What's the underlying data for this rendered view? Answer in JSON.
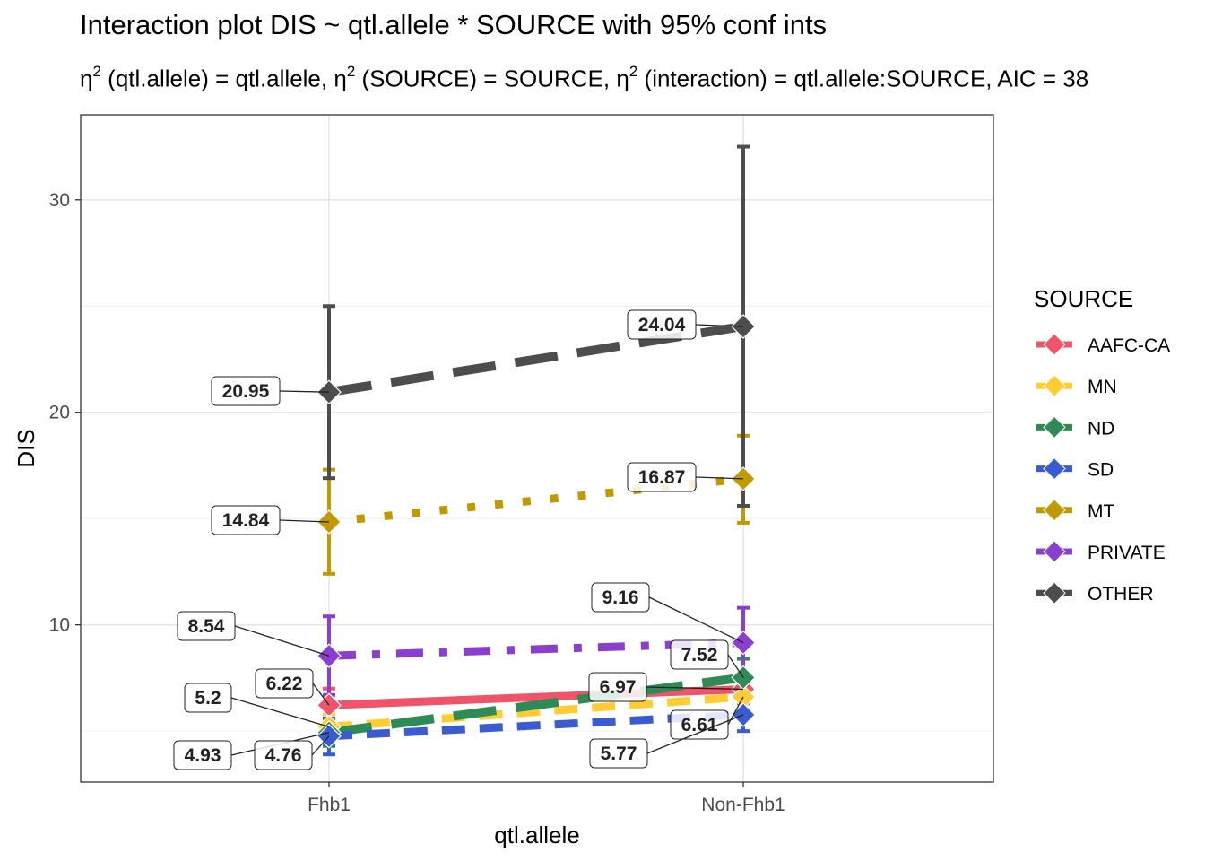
{
  "chart_data": {
    "type": "line",
    "title": "Interaction plot  DIS ~ qtl.allele * SOURCE with 95% conf ints",
    "subtitle": {
      "parts": [
        {
          "eta": "η",
          "sup": "2",
          "text": " (qtl.allele) = qtl.allele, "
        },
        {
          "eta": "η",
          "sup": "2",
          "text": " (SOURCE) = SOURCE, "
        },
        {
          "eta": "η",
          "sup": "2",
          "text": " (interaction) = qtl.allele:SOURCE, AIC = 38"
        }
      ]
    },
    "xlabel": "qtl.allele",
    "ylabel": "DIS",
    "categories": [
      "Fhb1",
      "Non-Fhb1"
    ],
    "ylim": [
      2.6,
      34
    ],
    "yticks": [
      10,
      20,
      30
    ],
    "grid": true,
    "legend": {
      "title": "SOURCE",
      "position": "right"
    },
    "series": [
      {
        "name": "AAFC-CA",
        "color": "#f0546a",
        "dash": "solid",
        "values": [
          6.22,
          6.97
        ],
        "lower": [
          5.5,
          6.3
        ],
        "upper": [
          7.0,
          7.6
        ],
        "labels": [
          "6.22",
          "6.97"
        ]
      },
      {
        "name": "MN",
        "color": "#ffcc33",
        "dash": "dash",
        "values": [
          5.2,
          6.61
        ],
        "lower": [
          4.6,
          6.0
        ],
        "upper": [
          5.8,
          7.2
        ],
        "labels": [
          "5.2",
          "6.61"
        ]
      },
      {
        "name": "ND",
        "color": "#2e8b57",
        "dash": "longdash",
        "values": [
          4.93,
          7.52
        ],
        "lower": [
          4.3,
          6.7
        ],
        "upper": [
          5.6,
          8.4
        ],
        "labels": [
          "4.93",
          "7.52"
        ]
      },
      {
        "name": "SD",
        "color": "#3b5bd0",
        "dash": "dash",
        "values": [
          4.76,
          5.77
        ],
        "lower": [
          3.9,
          5.0
        ],
        "upper": [
          5.6,
          6.5
        ],
        "labels": [
          "4.76",
          "5.77"
        ]
      },
      {
        "name": "MT",
        "color": "#c09a00",
        "dash": "dot",
        "values": [
          14.84,
          16.87
        ],
        "lower": [
          12.4,
          14.8
        ],
        "upper": [
          17.3,
          18.9
        ],
        "labels": [
          "14.84",
          "16.87"
        ]
      },
      {
        "name": "PRIVATE",
        "color": "#8a3fcf",
        "dash": "dotdash",
        "values": [
          8.54,
          9.16
        ],
        "lower": [
          6.7,
          7.5
        ],
        "upper": [
          10.4,
          10.8
        ],
        "labels": [
          "8.54",
          "9.16"
        ]
      },
      {
        "name": "OTHER",
        "color": "#4d4d4d",
        "dash": "longdash",
        "values": [
          20.95,
          24.04
        ],
        "lower": [
          16.9,
          15.6
        ],
        "upper": [
          25.0,
          32.5
        ],
        "labels": [
          "20.95",
          "24.04"
        ]
      }
    ]
  }
}
